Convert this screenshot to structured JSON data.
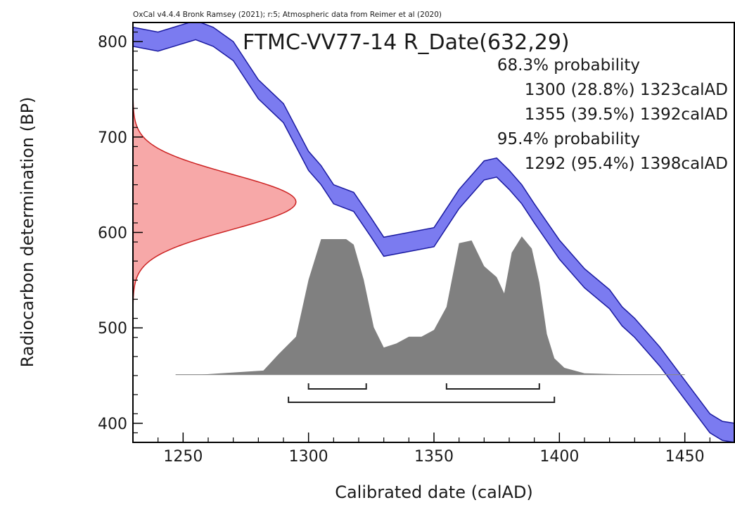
{
  "chart_data": {
    "type": "area",
    "header": "OxCal v4.4.4 Bronk Ramsey (2021); r:5; Atmospheric data from Reimer et al (2020)",
    "title": "FTMC-VV77-14 R_Date(632,29)",
    "xlabel": "Calibrated date (calAD)",
    "ylabel": "Radiocarbon determination (BP)",
    "xlim": [
      1230,
      1470
    ],
    "ylim": [
      380,
      820
    ],
    "xticks": [
      1250,
      1300,
      1350,
      1400,
      1450
    ],
    "yticks": [
      400,
      500,
      600,
      700,
      800
    ],
    "annotations": [
      "68.3% probability",
      "1300 (28.8%) 1323calAD",
      "1355 (39.5%) 1392calAD",
      "95.4% probability",
      "1292 (95.4%) 1398calAD"
    ],
    "radiocarbon_date": {
      "mean": 632,
      "error": 29
    },
    "colors": {
      "calibration_curve": "#7b7bf0",
      "calibration_edge": "#1a1aa0",
      "radiocarbon_distribution": "#f7a8a8",
      "radiocarbon_edge": "#cc2222",
      "posterior": "#808080"
    },
    "calibration_curve": {
      "x": [
        1230,
        1240,
        1250,
        1255,
        1262,
        1270,
        1280,
        1290,
        1300,
        1305,
        1310,
        1318,
        1325,
        1330,
        1340,
        1350,
        1355,
        1360,
        1365,
        1370,
        1375,
        1380,
        1385,
        1390,
        1400,
        1410,
        1420,
        1425,
        1430,
        1440,
        1450,
        1460,
        1465,
        1470
      ],
      "y": [
        805,
        800,
        808,
        812,
        805,
        790,
        750,
        725,
        675,
        660,
        640,
        632,
        605,
        585,
        590,
        595,
        615,
        635,
        650,
        665,
        668,
        655,
        640,
        620,
        582,
        552,
        530,
        512,
        500,
        470,
        435,
        400,
        392,
        390
      ],
      "band": 10
    },
    "posterior": {
      "x": [
        1230,
        1257,
        1282,
        1288,
        1295,
        1300,
        1305,
        1310,
        1315,
        1318,
        1322,
        1326,
        1330,
        1335,
        1340,
        1345,
        1350,
        1355,
        1360,
        1365,
        1370,
        1375,
        1378,
        1381,
        1385,
        1389,
        1392,
        1395,
        1398,
        1402,
        1410,
        1420,
        1430,
        1440,
        1450
      ],
      "y": [
        0,
        0,
        0.03,
        0.15,
        0.28,
        0.7,
        1.0,
        1.0,
        1.0,
        0.96,
        0.7,
        0.35,
        0.2,
        0.23,
        0.28,
        0.28,
        0.33,
        0.5,
        0.97,
        0.99,
        0.8,
        0.72,
        0.6,
        0.9,
        1.02,
        0.93,
        0.68,
        0.3,
        0.12,
        0.05,
        0.01,
        0.005,
        0.002,
        0.001,
        0
      ]
    },
    "ranges_68": [
      [
        1300,
        1323
      ],
      [
        1355,
        1392
      ]
    ],
    "ranges_95": [
      [
        1292,
        1398
      ]
    ]
  }
}
